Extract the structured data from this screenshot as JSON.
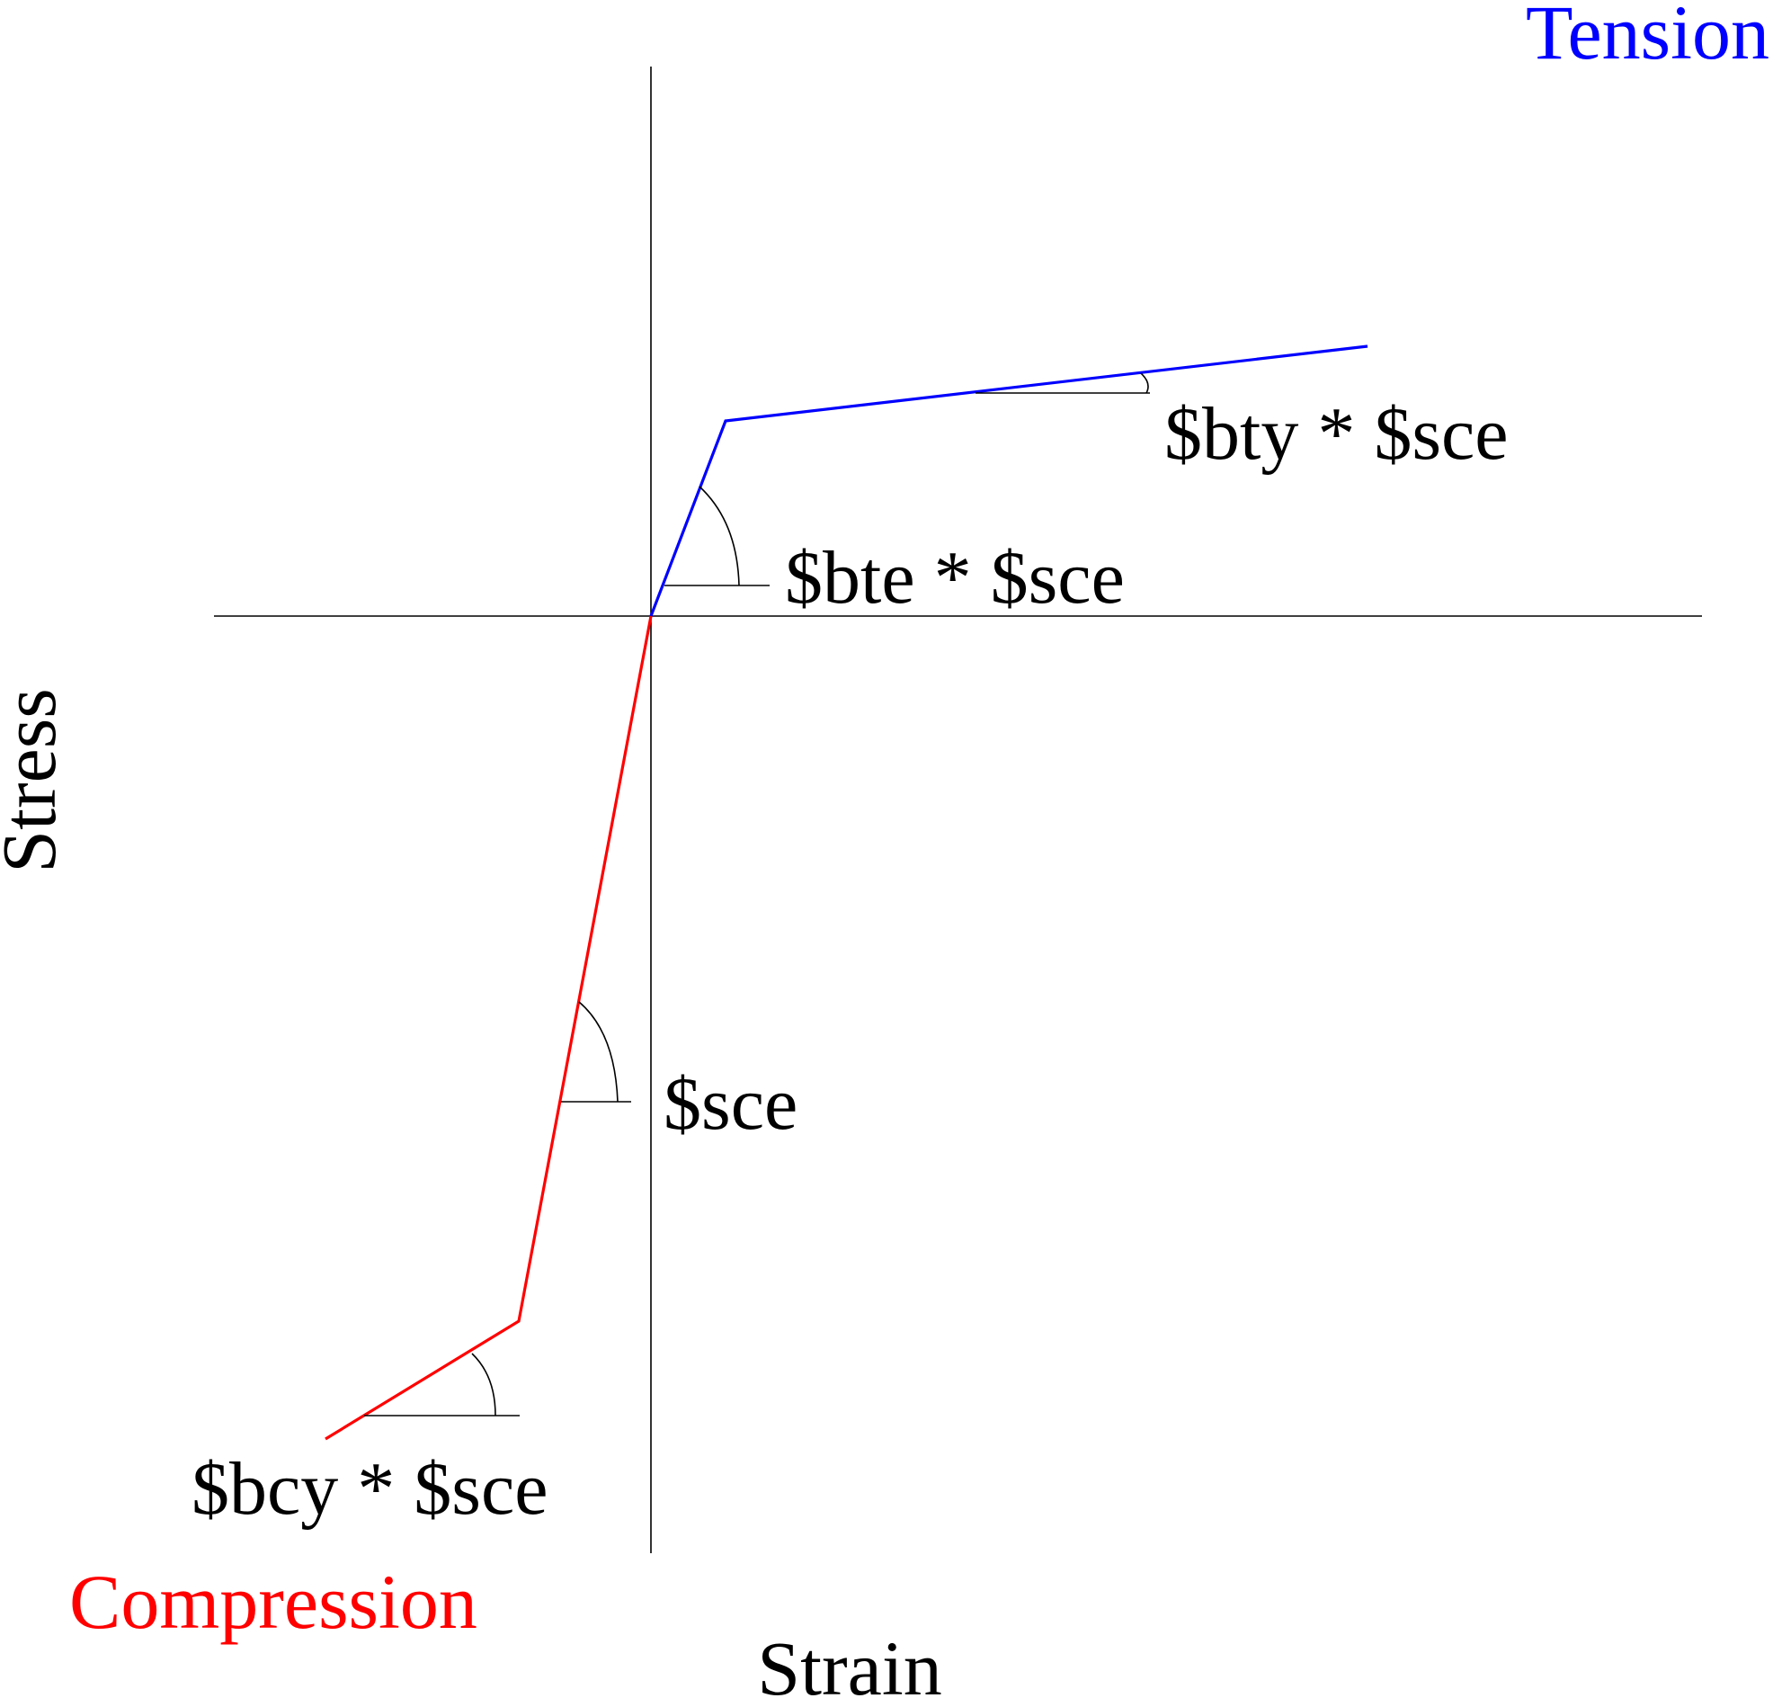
{
  "diagram": {
    "tension_label": "Tension",
    "compression_label": "Compression",
    "axis_x_label": "Strain",
    "axis_y_label": "Stress",
    "bty_label": "$bty * $sce",
    "bte_label": "$bte * $sce",
    "sce_label": "$sce",
    "bcy_label": "$bcy * $sce"
  },
  "colors": {
    "tension": "#0000ff",
    "compression": "#ff0000",
    "axes": "#000000",
    "text": "#000000",
    "background": "#ffffff"
  }
}
